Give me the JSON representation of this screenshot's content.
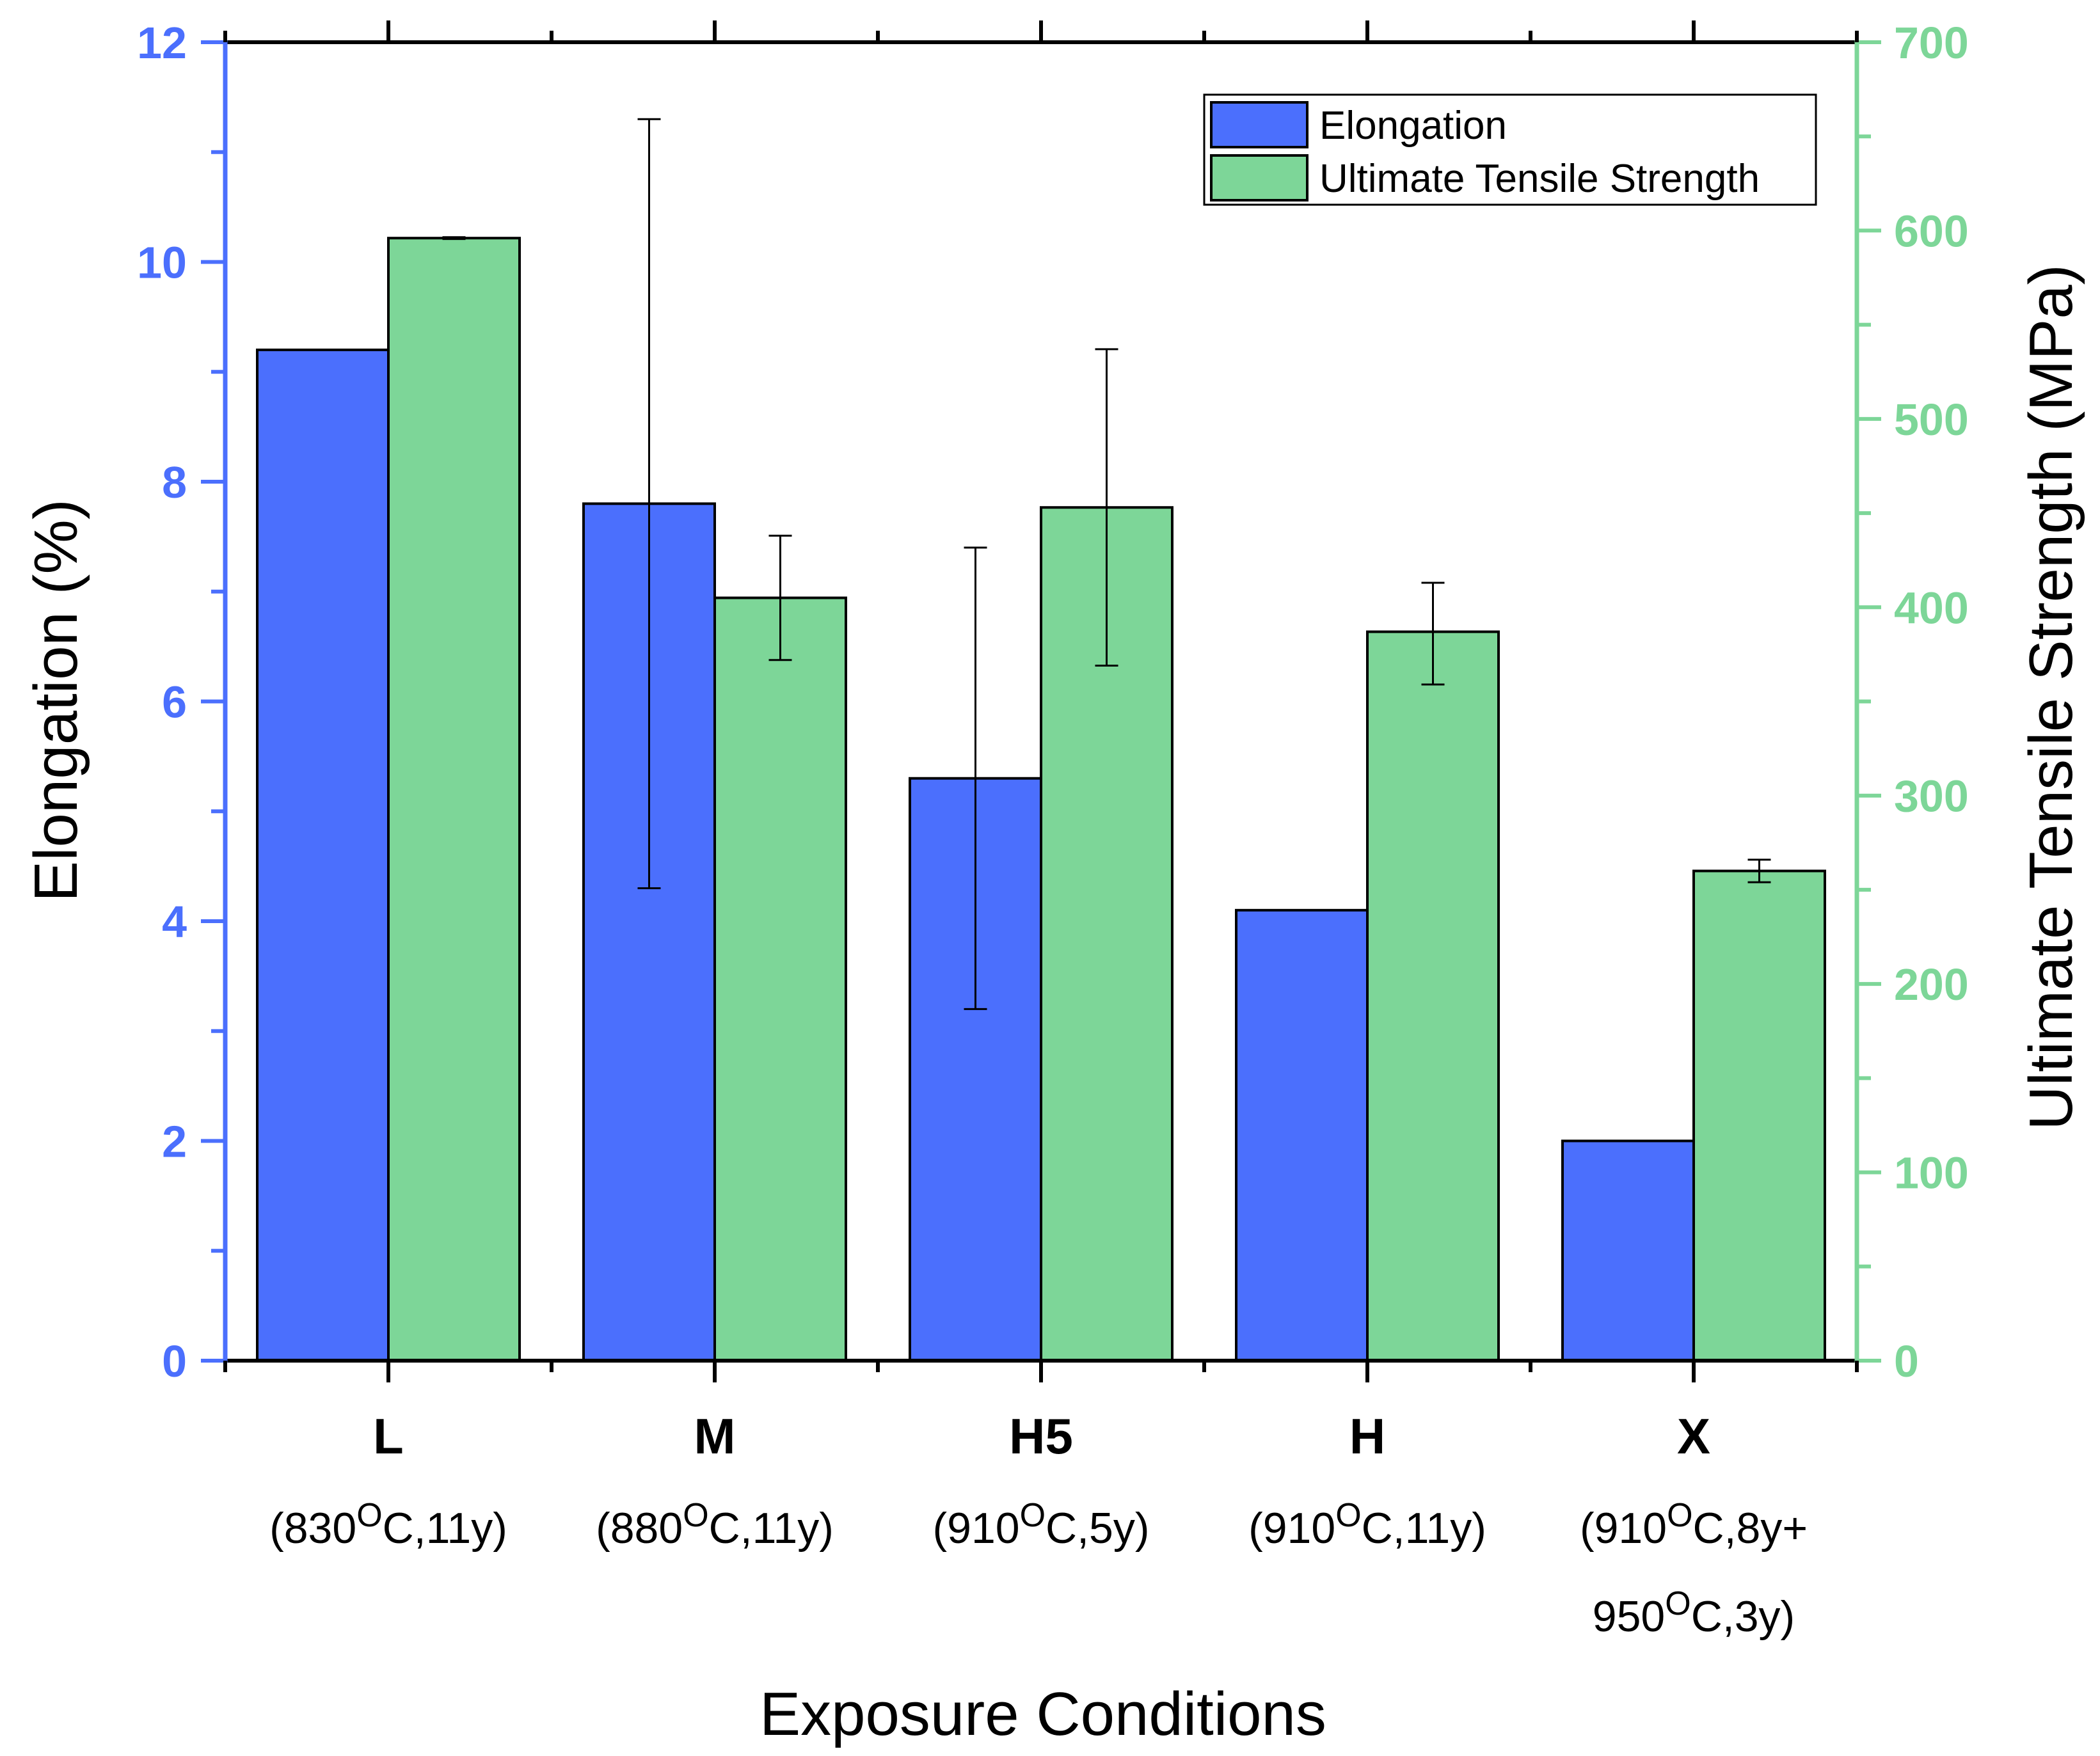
{
  "chart_data": {
    "type": "bar",
    "xlabel": "Exposure Conditions",
    "categories": [
      {
        "label": "L",
        "condition": [
          "(830",
          "O",
          "C,11y)"
        ]
      },
      {
        "label": "M",
        "condition": [
          "(880",
          "O",
          "C,11y)"
        ]
      },
      {
        "label": "H5",
        "condition": [
          "(910",
          "O",
          "C,5y)"
        ]
      },
      {
        "label": "H",
        "condition": [
          "(910",
          "O",
          "C,11y)"
        ]
      },
      {
        "label": "X",
        "condition": [
          "(910",
          "O",
          "C,8y+"
        ],
        "condition2": [
          "950",
          "O",
          "C,3y)"
        ]
      }
    ],
    "series": [
      {
        "name": "Elongation",
        "axis": "left",
        "color": "#4b6ffd",
        "values": [
          9.2,
          7.8,
          5.3,
          4.1,
          2.0
        ],
        "error_bars": [
          null,
          [
            4.3,
            11.3
          ],
          [
            3.2,
            7.4
          ],
          null,
          null
        ]
      },
      {
        "name": "Ultimate Tensile Strength",
        "axis": "right",
        "color": "#7dd698",
        "values": [
          596,
          405,
          453,
          387,
          260
        ],
        "error_bars": [
          [
            595.5,
            596.5
          ],
          [
            372,
            438
          ],
          [
            369,
            537
          ],
          [
            359,
            413
          ],
          [
            254,
            266
          ]
        ]
      }
    ],
    "y_left": {
      "label": "Elongation (%)",
      "range": [
        0,
        12
      ],
      "ticks": [
        "0",
        "2",
        "4",
        "6",
        "8",
        "10",
        "12"
      ],
      "color": "#4b6ffd"
    },
    "y_right": {
      "label": "Ultimate Tensile Strength (MPa)",
      "range": [
        0,
        700
      ],
      "ticks": [
        "0",
        "100",
        "200",
        "300",
        "400",
        "500",
        "600",
        "700"
      ],
      "color": "#7dd698"
    },
    "legend_position": "top-right",
    "grid": false
  }
}
